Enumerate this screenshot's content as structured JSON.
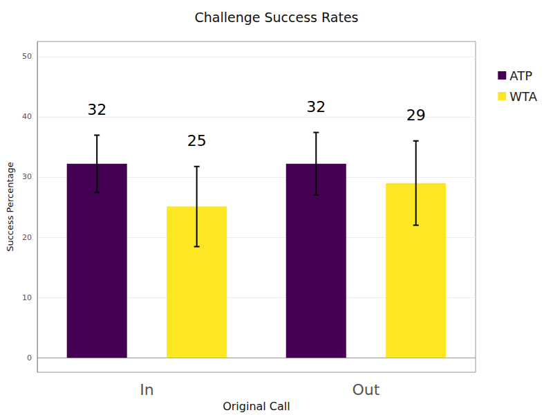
{
  "chart_data": {
    "type": "bar",
    "title": "Challenge Success Rates",
    "x_label": "Original Call",
    "y_label": "Success Percentage",
    "categories": [
      "In",
      "Out"
    ],
    "series": [
      {
        "name": "ATP",
        "color": "#440154",
        "values": [
          32.2,
          32.2
        ],
        "value_labels": [
          "32",
          "32"
        ],
        "error": [
          4.75,
          5.2
        ]
      },
      {
        "name": "WTA",
        "color": "#fde725",
        "values": [
          25.1,
          29.0
        ],
        "value_labels": [
          "25",
          "29"
        ],
        "error": [
          6.65,
          7.0
        ]
      }
    ],
    "ylim": [
      -2.4,
      52.5
    ],
    "yticks": [
      0,
      10,
      20,
      30,
      40,
      50
    ],
    "grid": true,
    "legend": "top-right",
    "data_labels": true
  }
}
